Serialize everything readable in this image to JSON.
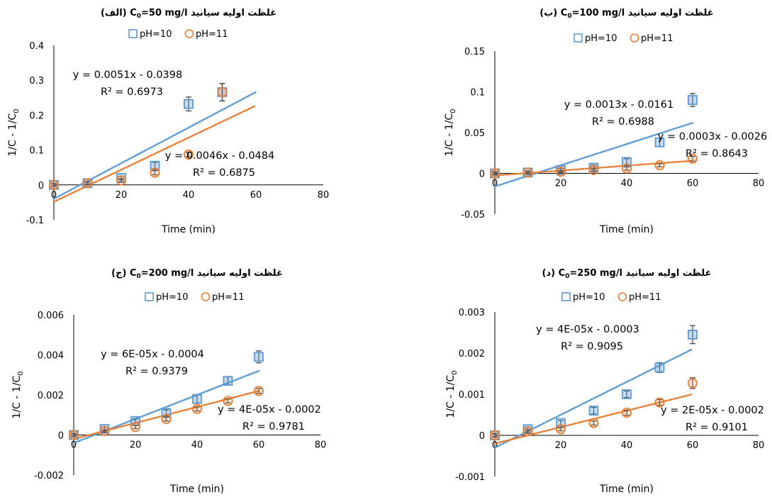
{
  "colors": {
    "ph10": "#5B9BD5",
    "ph11": "#ED7D31",
    "axis": "#000000",
    "errorbar": "#404040"
  },
  "legend": [
    "pH=10",
    "pH=11"
  ],
  "chart_data": [
    {
      "type": "scatter",
      "title": "غلظت اولیه سیانید C0=50 mg/l (الف)",
      "title_parts": {
        "fa": "غلظت اولیه سیانید ",
        "c": "C",
        "sub": "0",
        "rest": "=50 mg/l",
        "tag": " (الف)"
      },
      "xlabel": "Time (min)",
      "ylabel_parts": {
        "main": "1/C - 1/C",
        "sub": "0"
      },
      "xlim": [
        0,
        80
      ],
      "ylim": [
        -0.1,
        0.4
      ],
      "xticks": [
        0,
        20,
        40,
        60,
        80
      ],
      "xtick_labels": [
        "0",
        "20",
        "40",
        "60",
        "80"
      ],
      "yticks": [
        -0.1,
        0,
        0.1,
        0.2,
        0.3,
        0.4
      ],
      "ytick_labels": [
        "-0.1",
        "0",
        "0.1",
        "0.2",
        "0.3",
        "0.4"
      ],
      "trend_xmax": 60,
      "series": [
        {
          "name": "pH=10",
          "marker": "square",
          "x": [
            0,
            10,
            20,
            30,
            40,
            50
          ],
          "y": [
            0,
            0.005,
            0.02,
            0.055,
            0.232,
            0.266
          ],
          "err": [
            0.004,
            0.004,
            0.005,
            0.01,
            0.02,
            0.025
          ],
          "trend": {
            "slope": 0.0051,
            "intercept": -0.0398,
            "equation": "y = 0.0051x - 0.0398",
            "r2": "R² = 0.6973"
          }
        },
        {
          "name": "pH=11",
          "marker": "circle",
          "x": [
            0,
            10,
            20,
            30,
            40,
            50
          ],
          "y": [
            0,
            0.005,
            0.013,
            0.035,
            0.087,
            0.266
          ],
          "err": [
            0.003,
            0.003,
            0.004,
            0.006,
            0.006,
            0.025
          ],
          "trend": {
            "slope": 0.0046,
            "intercept": -0.0484,
            "equation": "y = 0.0046x - 0.0484",
            "r2": "R² = 0.6875"
          }
        }
      ]
    },
    {
      "type": "scatter",
      "title": "غلظت اولیه سیانید C0=100 mg/l (ب)",
      "title_parts": {
        "fa": "غلظت اولیه سیانید ",
        "c": "C",
        "sub": "0",
        "rest": "=100 mg/l",
        "tag": " (ب)"
      },
      "xlabel": "Time (min)",
      "ylabel_parts": {
        "main": "1/C - 1/C",
        "sub": "0"
      },
      "xlim": [
        0,
        80
      ],
      "ylim": [
        -0.05,
        0.15
      ],
      "xticks": [
        0,
        20,
        40,
        60,
        80
      ],
      "xtick_labels": [
        "0",
        "20",
        "40",
        "60",
        "80"
      ],
      "yticks": [
        -0.05,
        0,
        0.05,
        0.1,
        0.15
      ],
      "ytick_labels": [
        "-0.05",
        "0",
        "0.05",
        "0.1",
        "0.15"
      ],
      "trend_xmax": 60,
      "series": [
        {
          "name": "pH=10",
          "marker": "square",
          "x": [
            0,
            10,
            20,
            30,
            40,
            50,
            60
          ],
          "y": [
            0,
            0.001,
            0.004,
            0.007,
            0.014,
            0.038,
            0.09
          ],
          "err": [
            0.002,
            0.002,
            0.002,
            0.003,
            0.004,
            0.005,
            0.008
          ],
          "trend": {
            "slope": 0.0013,
            "intercept": -0.0161,
            "equation": "y = 0.0013x - 0.0161",
            "r2": "R² = 0.6988"
          }
        },
        {
          "name": "pH=11",
          "marker": "circle",
          "x": [
            0,
            10,
            20,
            30,
            40,
            50,
            60
          ],
          "y": [
            0,
            0.001,
            0.002,
            0.004,
            0.006,
            0.01,
            0.018
          ],
          "err": [
            0.001,
            0.001,
            0.001,
            0.002,
            0.002,
            0.002,
            0.003
          ],
          "trend": {
            "slope": 0.0003,
            "intercept": -0.0026,
            "equation": "y = 0.0003x - 0.0026",
            "r2": "R² = 0.8643"
          }
        }
      ]
    },
    {
      "type": "scatter",
      "title": "غلظت اولیه سیانید C0=200 mg/l (ج)",
      "title_parts": {
        "fa": "غلظت اولیه سیانید ",
        "c": "C",
        "sub": "0",
        "rest": "=200 mg/l",
        "tag": " (ج)"
      },
      "xlabel": "Time (min)",
      "ylabel_parts": {
        "main": "1/C - 1/C",
        "sub": "0"
      },
      "xlim": [
        0,
        80
      ],
      "ylim": [
        -0.002,
        0.006
      ],
      "xticks": [
        0,
        20,
        40,
        60,
        80
      ],
      "xtick_labels": [
        "0",
        "20",
        "40",
        "60",
        "80"
      ],
      "yticks": [
        -0.002,
        0,
        0.002,
        0.004,
        0.006
      ],
      "ytick_labels": [
        "-0.002",
        "0",
        "0.002",
        "0.004",
        "0.006"
      ],
      "trend_xmax": 60,
      "series": [
        {
          "name": "pH=10",
          "marker": "square",
          "x": [
            0,
            10,
            20,
            30,
            40,
            50,
            60
          ],
          "y": [
            0,
            0.0003,
            0.0007,
            0.0011,
            0.0018,
            0.0027,
            0.0039
          ],
          "err": [
            8e-05,
            0.0001,
            0.0001,
            0.00015,
            0.0002,
            0.0002,
            0.0003
          ],
          "trend": {
            "slope": 6e-05,
            "intercept": -0.0004,
            "equation": "y = 6E-05x - 0.0004",
            "r2": "R² = 0.9379"
          }
        },
        {
          "name": "pH=11",
          "marker": "circle",
          "x": [
            0,
            10,
            20,
            30,
            40,
            50,
            60
          ],
          "y": [
            0,
            0.0002,
            0.0004,
            0.0008,
            0.0013,
            0.0017,
            0.0022
          ],
          "err": [
            5e-05,
            6e-05,
            8e-05,
            0.0001,
            0.0001,
            0.0001,
            0.00012
          ],
          "trend": {
            "slope": 4e-05,
            "intercept": -0.0002,
            "equation": "y = 4E-05x - 0.0002",
            "r2": "R² = 0.9781"
          }
        }
      ]
    },
    {
      "type": "scatter",
      "title": "غلظت اولیه سیانید C0=250 mg/l (د)",
      "title_parts": {
        "fa": "غلظت اولیه سیانید ",
        "c": "C",
        "sub": "0",
        "rest": "=250 mg/l",
        "tag": " (د)"
      },
      "xlabel": "Time (min)",
      "ylabel_parts": {
        "main": "1/C - 1/C",
        "sub": "0"
      },
      "xlim": [
        0,
        80
      ],
      "ylim": [
        -0.001,
        0.003
      ],
      "xticks": [
        0,
        20,
        40,
        60,
        80
      ],
      "xtick_labels": [
        "0",
        "20",
        "40",
        "60",
        "80"
      ],
      "yticks": [
        -0.001,
        0,
        0.001,
        0.002,
        0.003
      ],
      "ytick_labels": [
        "-0.001",
        "0",
        "0.001",
        "0.002",
        "0.003"
      ],
      "trend_xmax": 60,
      "series": [
        {
          "name": "pH=10",
          "marker": "square",
          "x": [
            0,
            10,
            20,
            30,
            40,
            50,
            60
          ],
          "y": [
            0,
            0.00015,
            0.0003,
            0.0006,
            0.001,
            0.00165,
            0.00245
          ],
          "err": [
            4e-05,
            5e-05,
            6e-05,
            8e-05,
            8e-05,
            0.00012,
            0.00022
          ],
          "trend": {
            "slope": 4e-05,
            "intercept": -0.0003,
            "equation": "y = 4E-05x - 0.0003",
            "r2": "R² = 0.9095"
          }
        },
        {
          "name": "pH=11",
          "marker": "circle",
          "x": [
            0,
            10,
            20,
            30,
            40,
            50,
            60
          ],
          "y": [
            0,
            0.0001,
            0.00015,
            0.0003,
            0.00055,
            0.0008,
            0.00127
          ],
          "err": [
            3e-05,
            4e-05,
            4e-05,
            5e-05,
            6e-05,
            7e-05,
            0.00013
          ],
          "trend": {
            "slope": 2e-05,
            "intercept": -0.0002,
            "equation": "y = 2E-05x - 0.0002",
            "r2": "R² = 0.9101"
          }
        }
      ]
    }
  ]
}
